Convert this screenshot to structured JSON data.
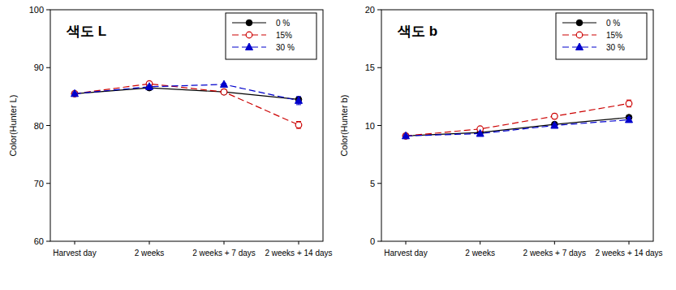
{
  "chart_data": [
    {
      "type": "line",
      "title": "색도 L",
      "y_label": "Color(Hunter L)",
      "categories": [
        "Harvest day",
        "2 weeks",
        "2 weeks + 7 days",
        "2 weeks + 14 days"
      ],
      "ylim": [
        60,
        100
      ],
      "yticks": [
        60,
        70,
        80,
        90,
        100
      ],
      "legend": "upper right",
      "series": [
        {
          "name": "0 %",
          "color": "#000000",
          "marker": "circle",
          "line_style": "solid",
          "values": [
            85.5,
            86.5,
            85.8,
            84.5
          ],
          "errors": [
            0.2,
            0.3,
            0.2,
            0.4
          ]
        },
        {
          "name": "15%",
          "color": "#cc0000",
          "marker": "open-circle",
          "line_style": "dashed",
          "values": [
            85.5,
            87.2,
            85.8,
            80.1
          ],
          "errors": [
            0.2,
            0.3,
            0.2,
            0.6
          ]
        },
        {
          "name": "30 %",
          "color": "#0000cc",
          "marker": "triangle",
          "line_style": "dashed",
          "values": [
            85.5,
            86.7,
            87.1,
            84.3
          ],
          "errors": [
            0.2,
            0.3,
            0.2,
            0.7
          ]
        }
      ]
    },
    {
      "type": "line",
      "title": "색도 b",
      "y_label": "Color(Hunter b)",
      "categories": [
        "Harvest day",
        "2 weeks",
        "2 weeks + 7 days",
        "2 weeks + 14 days"
      ],
      "ylim": [
        0,
        20
      ],
      "yticks": [
        0,
        5,
        10,
        15,
        20
      ],
      "legend": "upper right",
      "series": [
        {
          "name": "0 %",
          "color": "#000000",
          "marker": "circle",
          "line_style": "solid",
          "values": [
            9.1,
            9.4,
            10.1,
            10.7
          ],
          "errors": [
            0.1,
            0.1,
            0.15,
            0.2
          ]
        },
        {
          "name": "15%",
          "color": "#cc0000",
          "marker": "open-circle",
          "line_style": "dashed",
          "values": [
            9.1,
            9.7,
            10.8,
            11.9
          ],
          "errors": [
            0.1,
            0.15,
            0.2,
            0.3
          ]
        },
        {
          "name": "30 %",
          "color": "#0000cc",
          "marker": "triangle",
          "line_style": "dashed",
          "values": [
            9.1,
            9.3,
            10.0,
            10.5
          ],
          "errors": [
            0.1,
            0.1,
            0.15,
            0.2
          ]
        }
      ]
    }
  ]
}
